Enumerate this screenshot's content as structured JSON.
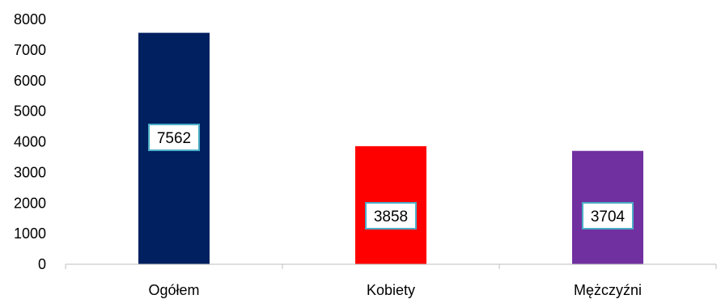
{
  "chart_data": {
    "type": "bar",
    "categories": [
      "Ogółem",
      "Kobiety",
      "Mężczyźni"
    ],
    "values": [
      7562,
      3858,
      3704
    ],
    "data_labels": [
      "7562",
      "3858",
      "3704"
    ],
    "colors": [
      "#002060",
      "#FF0000",
      "#7030A0"
    ],
    "label_border_color": "#4BACC6",
    "yticks": [
      "0",
      "1000",
      "2000",
      "3000",
      "4000",
      "5000",
      "6000",
      "7000",
      "8000"
    ],
    "ylim": [
      0,
      8000
    ],
    "grid": false,
    "legend": "none",
    "title": "",
    "xlabel": "",
    "ylabel": ""
  }
}
